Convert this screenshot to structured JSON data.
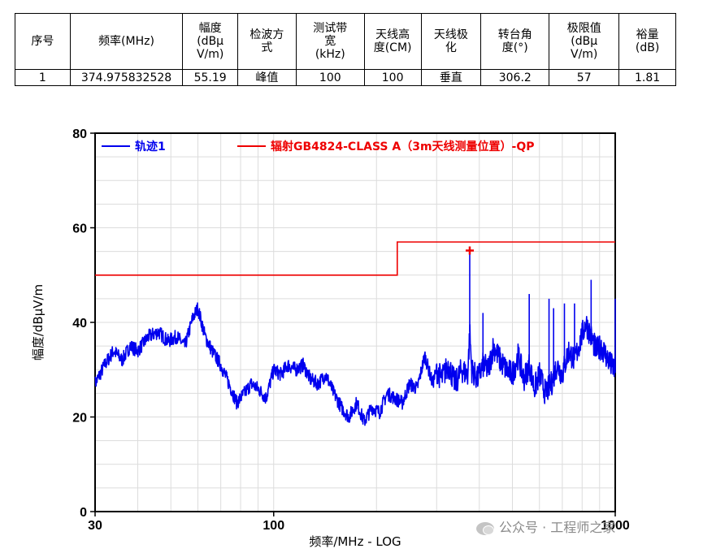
{
  "table": {
    "headers": [
      "序号",
      "频率(MHz)",
      "幅度\n(dBμ\nV/m)",
      "检波方\n式",
      "测试带\n宽\n(kHz)",
      "天线高\n度(CM)",
      "天线极\n化",
      "转台角\n度(°)",
      "极限值\n(dBμ\nV/m)",
      "裕量\n(dB)"
    ],
    "rows": [
      [
        "1",
        "374.975832528",
        "55.19",
        "峰值",
        "100",
        "100",
        "垂直",
        "306.2",
        "57",
        "1.81"
      ]
    ]
  },
  "chart_data": {
    "type": "line",
    "xlabel": "频率/MHz - LOG",
    "ylabel": "幅度/dBμV/m",
    "x_scale": "log",
    "xlim": [
      30,
      1000
    ],
    "ylim": [
      0,
      80
    ],
    "x_ticks": [
      30,
      100,
      1000
    ],
    "y_ticks": [
      0,
      20,
      40,
      60,
      80
    ],
    "grid": true,
    "legend_position": "top",
    "series": [
      {
        "name": "轨迹1",
        "color": "#0000ee",
        "x": [
          30,
          32,
          34,
          36,
          38,
          40,
          43,
          46,
          49,
          52,
          55,
          58,
          60,
          63,
          66,
          70,
          74,
          78,
          82,
          86,
          90,
          95,
          100,
          105,
          110,
          116,
          122,
          128,
          135,
          142,
          150,
          158,
          166,
          175,
          184,
          194,
          204,
          215,
          226,
          238,
          250,
          263,
          277,
          292,
          300,
          310,
          325,
          340,
          355,
          370,
          375,
          380,
          395,
          410,
          425,
          440,
          460,
          480,
          500,
          520,
          540,
          560,
          580,
          600,
          625,
          650,
          675,
          700,
          730,
          760,
          790,
          820,
          850,
          880,
          910,
          940,
          970,
          1000
        ],
        "y": [
          27,
          31,
          34,
          32,
          35,
          34,
          37,
          38,
          36,
          37,
          35,
          41,
          43,
          37,
          34,
          31,
          27,
          23,
          25,
          27,
          26,
          24,
          30,
          29,
          31,
          30,
          31,
          28,
          27,
          29,
          25,
          22,
          20,
          23,
          19,
          22,
          21,
          25,
          24,
          23,
          27,
          26,
          33,
          27,
          30,
          28,
          31,
          27,
          30,
          29,
          38,
          30,
          28,
          31,
          30,
          35,
          32,
          30,
          29,
          33,
          28,
          31,
          26,
          29,
          25,
          27,
          31,
          29,
          34,
          32,
          36,
          40,
          37,
          34,
          35,
          33,
          31,
          30
        ]
      },
      {
        "name": "辐射GB4824-CLASS A（3m天线测量位置）-QP",
        "color": "#ee0000",
        "x": [
          30,
          230,
          230,
          1000
        ],
        "y": [
          50,
          50,
          57,
          57
        ]
      }
    ],
    "spikes": [
      {
        "x": 375,
        "y": 55.19
      },
      {
        "x": 410,
        "y": 42
      },
      {
        "x": 560,
        "y": 46
      },
      {
        "x": 640,
        "y": 45
      },
      {
        "x": 660,
        "y": 43
      },
      {
        "x": 710,
        "y": 44
      },
      {
        "x": 760,
        "y": 44
      },
      {
        "x": 850,
        "y": 49
      },
      {
        "x": 1000,
        "y": 45
      }
    ],
    "marker": {
      "x": 375,
      "y": 55.19
    }
  },
  "watermark": {
    "text": "公众号 · 工程师之家"
  }
}
